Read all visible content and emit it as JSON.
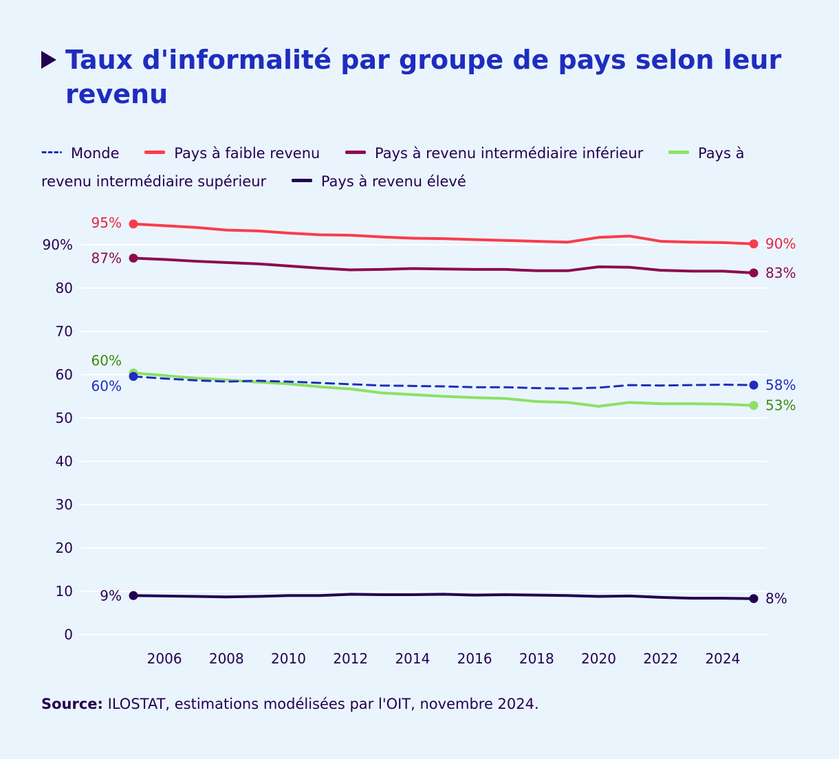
{
  "title": "Taux d'informalité par groupe de pays selon leur revenu",
  "legend": [
    {
      "label": "Monde",
      "color": "#1e2dbe",
      "style": "dashed"
    },
    {
      "label": "Pays à faible revenu",
      "color": "#fa3c4b",
      "style": "solid"
    },
    {
      "label": "Pays à revenu intermédiaire inférieur",
      "color": "#8c0a50",
      "style": "solid"
    },
    {
      "label": "Pays à revenu intermédiaire supérieur",
      "color": "#8ce164",
      "style": "solid"
    },
    {
      "label": "Pays à revenu élevé",
      "color": "#230050",
      "style": "solid"
    }
  ],
  "source": {
    "label": "Source:",
    "text": "ILOSTAT, estimations modélisées par l'OIT, novembre 2024."
  },
  "chart_data": {
    "type": "line",
    "x": [
      2005,
      2006,
      2007,
      2008,
      2009,
      2010,
      2011,
      2012,
      2013,
      2014,
      2015,
      2016,
      2017,
      2018,
      2019,
      2020,
      2021,
      2022,
      2023,
      2024,
      2025
    ],
    "xticks": [
      "2006",
      "2008",
      "2010",
      "2012",
      "2014",
      "2016",
      "2018",
      "2020",
      "2022",
      "2024"
    ],
    "yticks": [
      "0",
      "10",
      "20",
      "30",
      "40",
      "50",
      "60",
      "70",
      "80",
      "90%"
    ],
    "ylim": [
      0,
      95
    ],
    "series": [
      {
        "name": "Pays à faible revenu",
        "color": "#fa3c4b",
        "dashed": false,
        "values": [
          94.8,
          94.4,
          94.0,
          93.4,
          93.2,
          92.7,
          92.3,
          92.2,
          91.8,
          91.5,
          91.4,
          91.2,
          91.0,
          90.8,
          90.6,
          91.7,
          92.0,
          90.8,
          90.6,
          90.5,
          90.2
        ],
        "start_label": "95%",
        "end_label": "90%",
        "start_label_color": "#e8263f",
        "end_label_color": "#e8263f"
      },
      {
        "name": "Pays à revenu intermédiaire inférieur",
        "color": "#8c0a50",
        "dashed": false,
        "values": [
          86.9,
          86.6,
          86.2,
          85.9,
          85.6,
          85.1,
          84.6,
          84.2,
          84.3,
          84.5,
          84.4,
          84.3,
          84.3,
          84.0,
          84.0,
          84.9,
          84.8,
          84.1,
          83.9,
          83.9,
          83.5
        ],
        "start_label": "87%",
        "end_label": "83%",
        "start_label_color": "#8c0a50",
        "end_label_color": "#8c0a50"
      },
      {
        "name": "Pays à revenu intermédiaire supérieur",
        "color": "#8ce164",
        "dashed": false,
        "values": [
          60.4,
          59.8,
          59.2,
          58.8,
          58.3,
          57.9,
          57.2,
          56.7,
          55.8,
          55.4,
          55.0,
          54.7,
          54.5,
          53.8,
          53.6,
          52.7,
          53.6,
          53.3,
          53.3,
          53.2,
          52.9
        ],
        "start_label": "60%",
        "end_label": "53%",
        "start_label_color": "#3c8c0f",
        "end_label_color": "#3c8c0f"
      },
      {
        "name": "Monde",
        "color": "#1e2dbe",
        "dashed": true,
        "values": [
          59.6,
          59.1,
          58.7,
          58.4,
          58.6,
          58.4,
          58.1,
          57.8,
          57.5,
          57.4,
          57.3,
          57.1,
          57.1,
          56.9,
          56.8,
          57.0,
          57.6,
          57.5,
          57.6,
          57.7,
          57.6
        ],
        "start_label": "60%",
        "end_label": "58%",
        "start_label_color": "#1e2dbe",
        "end_label_color": "#1e2dbe"
      },
      {
        "name": "Pays à revenu élevé",
        "color": "#230050",
        "dashed": false,
        "values": [
          9.0,
          8.9,
          8.8,
          8.7,
          8.8,
          9.0,
          9.0,
          9.3,
          9.2,
          9.2,
          9.3,
          9.1,
          9.2,
          9.1,
          9.0,
          8.8,
          8.9,
          8.6,
          8.4,
          8.4,
          8.3
        ],
        "start_label": "9%",
        "end_label": "8%",
        "start_label_color": "#230050",
        "end_label_color": "#230050"
      }
    ]
  }
}
